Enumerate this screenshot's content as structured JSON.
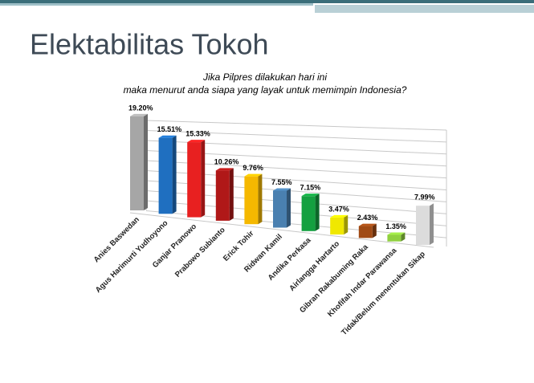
{
  "slide": {
    "title": "Elektabilitas Tokoh"
  },
  "chart_data": {
    "type": "bar3d",
    "title": "Jika Pilpres dilakukan hari ini",
    "subtitle": "maka menurut anda siapa yang layak untuk memimpin Indonesia?",
    "categories": [
      "Anies Baswedan",
      "Agus Harimurti Yudhoyono",
      "Ganjar Pranowo",
      "Prabowo Subianto",
      "Erick Tohir",
      "Ridwan Kamil",
      "Andika Perkasa",
      "Airlangga Hartarto",
      "Gibran Rakabuming Raka",
      "Khofifah Indar Parawansa",
      "Tidak/Belum menentukan Sikap"
    ],
    "values": [
      19.2,
      15.51,
      15.33,
      10.26,
      9.76,
      7.55,
      7.15,
      3.47,
      2.43,
      1.35,
      7.99
    ],
    "value_labels": [
      "19.20%",
      "15.51%",
      "15.33%",
      "10.26%",
      "9.76%",
      "7.55%",
      "7.15%",
      "3.47%",
      "2.43%",
      "1.35%",
      "7.99%"
    ],
    "colors": [
      "#a6a6a6",
      "#1f6fc0",
      "#e82020",
      "#b01818",
      "#f5b800",
      "#4a80b0",
      "#14a040",
      "#f0e800",
      "#a04a14",
      "#90d040",
      "#dcdcdc"
    ]
  }
}
